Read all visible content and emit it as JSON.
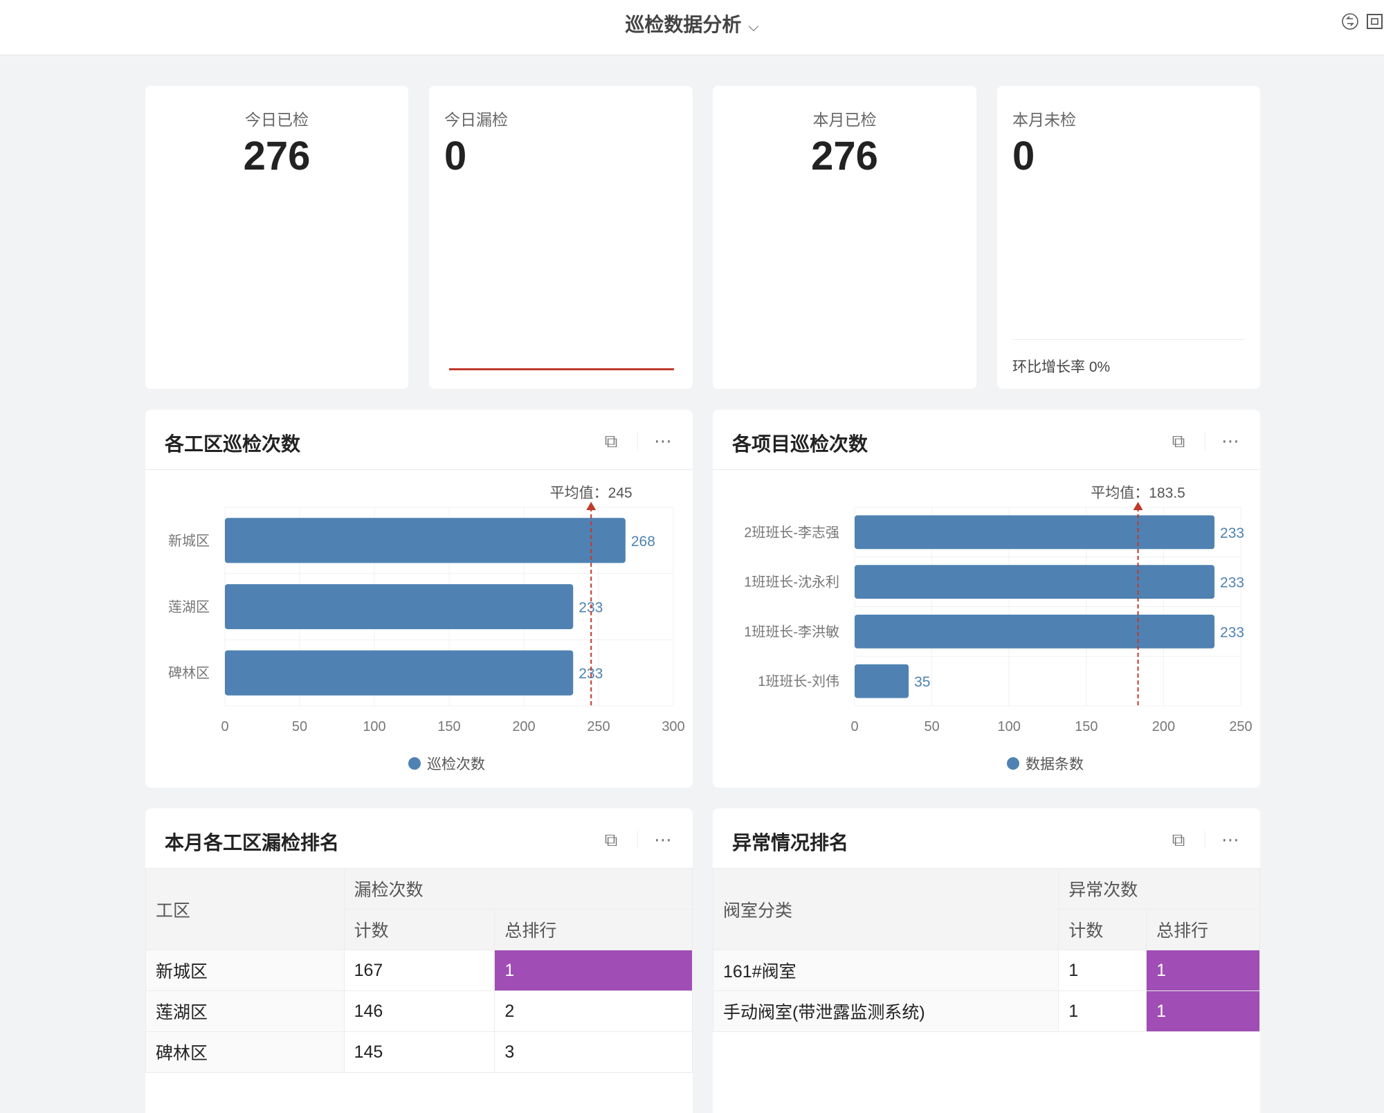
{
  "header": {
    "title": "巡检数据分析",
    "chevron_icon": "chevron-down-icon",
    "icons": [
      "switch-icon",
      "fullscreen-icon"
    ]
  },
  "kpis": [
    {
      "label": "今日已检",
      "value": "276"
    },
    {
      "label": "今日漏检",
      "value": "0"
    },
    {
      "label": "本月已检",
      "value": "276"
    },
    {
      "label": "本月未检",
      "value": "0",
      "footer": "环比增长率 0%"
    }
  ],
  "colors": {
    "bar": "#4f82b2",
    "avg_line": "#c0392b",
    "highlight": "#a04db5",
    "kpi_line": "#c0392b"
  },
  "panels": {
    "area_chart": {
      "title": "各工区巡检次数"
    },
    "project_chart": {
      "title": "各项目巡检次数"
    },
    "miss_table": {
      "title": "本月各工区漏检排名",
      "headers": {
        "col1": "工区",
        "group": "漏检次数",
        "count": "计数",
        "rank": "总排行"
      },
      "rows": [
        {
          "name": "新城区",
          "count": "167",
          "rank": "1",
          "highlight": true
        },
        {
          "name": "莲湖区",
          "count": "146",
          "rank": "2"
        },
        {
          "name": "碑林区",
          "count": "145",
          "rank": "3"
        }
      ]
    },
    "abnormal_table": {
      "title": "异常情况排名",
      "headers": {
        "col1": "阀室分类",
        "group": "异常次数",
        "count": "计数",
        "rank": "总排行"
      },
      "rows": [
        {
          "name": "161#阀室",
          "count": "1",
          "rank": "1",
          "highlight": true
        },
        {
          "name": "手动阀室(带泄露监测系统)",
          "count": "1",
          "rank": "1",
          "highlight": true
        }
      ]
    }
  },
  "chart_data": [
    {
      "type": "bar",
      "orientation": "horizontal",
      "categories": [
        "新城区",
        "莲湖区",
        "碑林区"
      ],
      "series": [
        {
          "name": "巡检次数",
          "values": [
            268,
            233,
            233
          ]
        }
      ],
      "xlim": [
        0,
        300
      ],
      "ticks": [
        0,
        50,
        100,
        150,
        200,
        250,
        300
      ],
      "avg": 245,
      "avg_label": "平均值：245",
      "legend": "bottom",
      "grid": true
    },
    {
      "type": "bar",
      "orientation": "horizontal",
      "categories": [
        "2班班长-李志强",
        "1班班长-沈永利",
        "1班班长-李洪敏",
        "1班班长-刘伟"
      ],
      "series": [
        {
          "name": "数据条数",
          "values": [
            233,
            233,
            233,
            35
          ]
        }
      ],
      "xlim": [
        0,
        250
      ],
      "ticks": [
        0,
        50,
        100,
        150,
        200,
        250
      ],
      "avg": 183.5,
      "avg_label": "平均值：183.5",
      "legend": "bottom",
      "grid": true
    }
  ]
}
